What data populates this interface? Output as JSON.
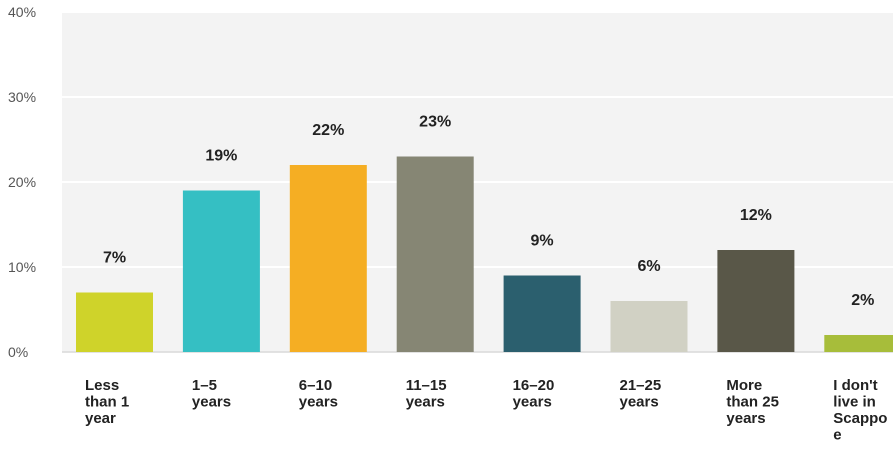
{
  "chart_data": {
    "type": "bar",
    "categories": [
      [
        "Less",
        "than 1",
        "year"
      ],
      [
        "1–5",
        "years"
      ],
      [
        "6–10",
        "years"
      ],
      [
        "11–15",
        "years"
      ],
      [
        "16–20",
        "years"
      ],
      [
        "21–25",
        "years"
      ],
      [
        "More",
        "than 25",
        "years"
      ],
      [
        "I don't",
        "live in",
        "Scappo",
        "e"
      ]
    ],
    "values": [
      7,
      19,
      22,
      23,
      9,
      6,
      12,
      2
    ],
    "value_labels": [
      "7%",
      "19%",
      "22%",
      "23%",
      "9%",
      "6%",
      "12%",
      "2%"
    ],
    "colors": [
      "#cfd32a",
      "#35bfc3",
      "#f5ae23",
      "#868674",
      "#2b5f6e",
      "#d1d1c4",
      "#595748",
      "#a7bd3a"
    ],
    "ylim": [
      0,
      40
    ],
    "yticks": [
      "0%",
      "10%",
      "20%",
      "30%",
      "40%"
    ],
    "grid": true,
    "plot_background": "#f3f3f3",
    "title": "",
    "xlabel": "",
    "ylabel": ""
  }
}
